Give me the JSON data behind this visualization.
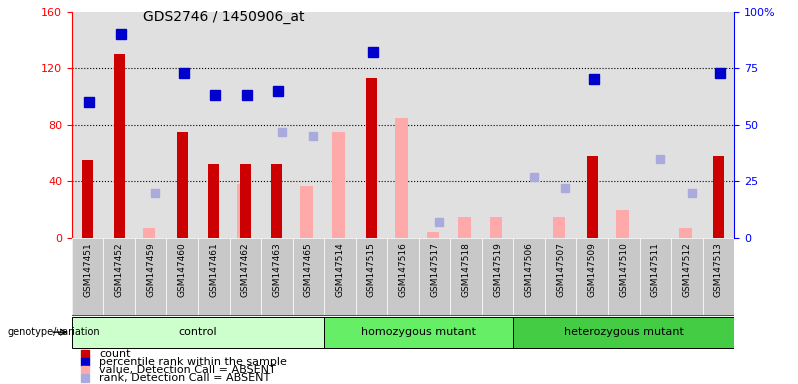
{
  "title": "GDS2746 / 1450906_at",
  "samples": [
    "GSM147451",
    "GSM147452",
    "GSM147459",
    "GSM147460",
    "GSM147461",
    "GSM147462",
    "GSM147463",
    "GSM147465",
    "GSM147514",
    "GSM147515",
    "GSM147516",
    "GSM147517",
    "GSM147518",
    "GSM147519",
    "GSM147506",
    "GSM147507",
    "GSM147509",
    "GSM147510",
    "GSM147511",
    "GSM147512",
    "GSM147513"
  ],
  "groups": [
    {
      "name": "control",
      "start": 0,
      "end": 7,
      "color": "#ccffcc"
    },
    {
      "name": "homozygous mutant",
      "start": 8,
      "end": 13,
      "color": "#66ee66"
    },
    {
      "name": "heterozygous mutant",
      "start": 14,
      "end": 20,
      "color": "#44cc44"
    }
  ],
  "count": [
    55,
    130,
    null,
    75,
    52,
    52,
    52,
    null,
    null,
    113,
    null,
    null,
    null,
    null,
    null,
    null,
    58,
    null,
    null,
    null,
    58
  ],
  "rank_pct": [
    60,
    90,
    null,
    73,
    63,
    63,
    65,
    null,
    null,
    82,
    null,
    null,
    null,
    null,
    null,
    null,
    70,
    null,
    null,
    null,
    73
  ],
  "absent_value": [
    null,
    null,
    7,
    null,
    null,
    38,
    null,
    37,
    75,
    null,
    85,
    4,
    15,
    15,
    null,
    15,
    null,
    20,
    null,
    7,
    null
  ],
  "absent_rank_pct": [
    null,
    null,
    20,
    null,
    null,
    null,
    47,
    45,
    null,
    null,
    null,
    7,
    null,
    null,
    27,
    22,
    null,
    null,
    35,
    20,
    null
  ],
  "ylim_left": [
    0,
    160
  ],
  "ylim_right": [
    0,
    100
  ],
  "yticks_left": [
    0,
    40,
    80,
    120,
    160
  ],
  "yticks_right": [
    0,
    25,
    50,
    75,
    100
  ],
  "ytick_labels_right": [
    "0",
    "25",
    "50",
    "75",
    "100%"
  ],
  "color_count": "#cc0000",
  "color_rank": "#0000cc",
  "color_absent_value": "#ffaaaa",
  "color_absent_rank": "#aaaadd",
  "bg_plot": "#e0e0e0",
  "bg_label": "#c8c8c8",
  "bg_group_row": "#888888"
}
